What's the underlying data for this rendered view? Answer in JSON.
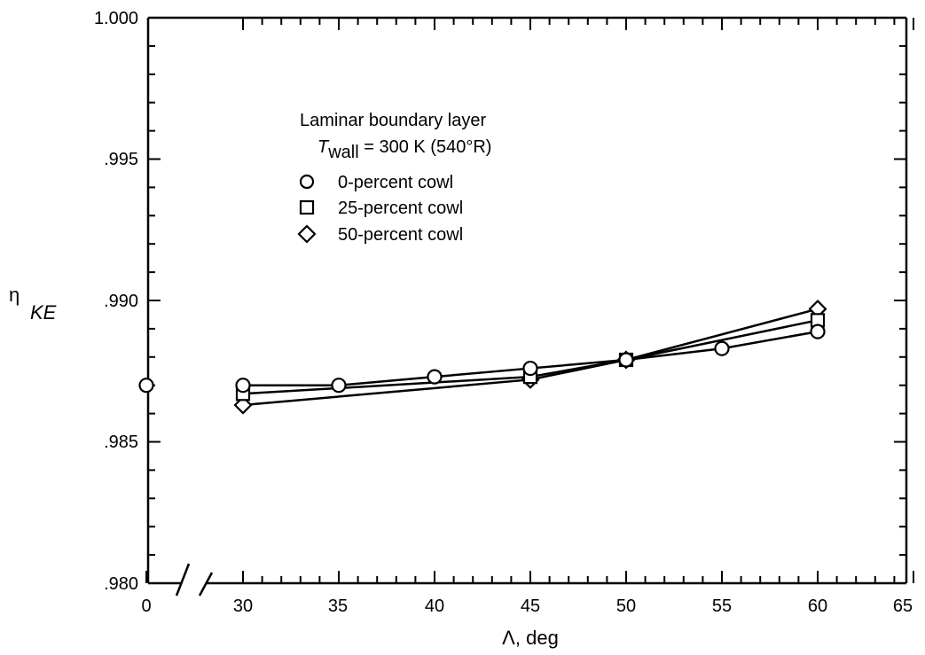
{
  "chart_data": {
    "type": "line",
    "xlabel": "Λ, deg",
    "ylabel": "η",
    "ylabel_sub": "KE",
    "xlim": [
      25,
      65
    ],
    "ylim": [
      0.98,
      1.0
    ],
    "axis_break": true,
    "x_ticks": [
      "0",
      "30",
      "35",
      "40",
      "45",
      "50",
      "55",
      "60",
      "65"
    ],
    "y_ticks": [
      ".980",
      ".985",
      ".990",
      ".995",
      "1.000"
    ],
    "legend": {
      "title": "Laminar boundary layer",
      "subtitle_symbol": "T",
      "subtitle_sub": "wall",
      "subtitle_rest": " = 300 K (540°R)",
      "placement": "upper-left"
    },
    "series": [
      {
        "name": "0-percent cowl",
        "marker": "circle",
        "x": [
          30,
          35,
          40,
          45,
          50,
          55,
          60
        ],
        "values": [
          0.987,
          0.987,
          0.9873,
          0.9876,
          0.9879,
          0.9883,
          0.9889
        ],
        "isolated_point": {
          "x": 0,
          "value": 0.987
        }
      },
      {
        "name": "25-percent cowl",
        "marker": "square",
        "x": [
          30,
          45,
          50,
          60
        ],
        "values": [
          0.9867,
          0.9873,
          0.9879,
          0.9893
        ]
      },
      {
        "name": "50-percent cowl",
        "marker": "diamond",
        "x": [
          30,
          45,
          50,
          60
        ],
        "values": [
          0.9863,
          0.9872,
          0.9879,
          0.9897
        ]
      }
    ]
  }
}
